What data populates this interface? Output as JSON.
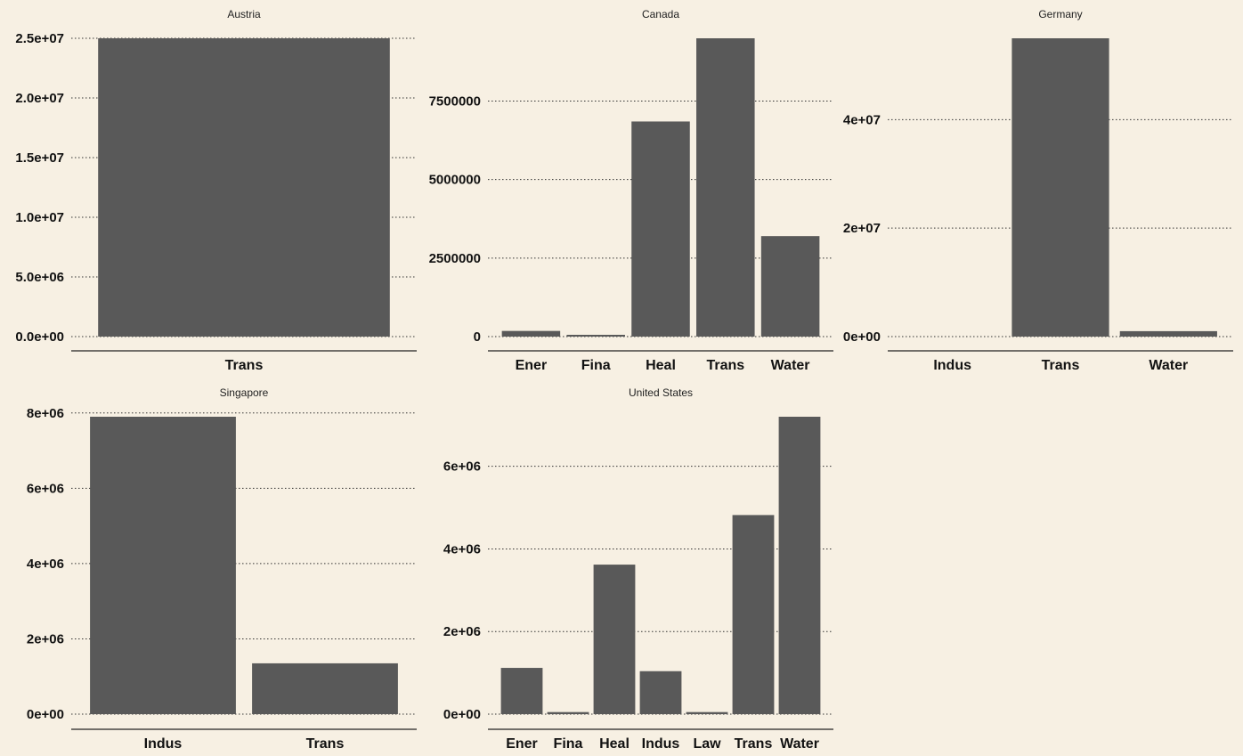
{
  "chart_data": [
    {
      "type": "bar",
      "title": "Austria",
      "categories": [
        "Trans"
      ],
      "values": [
        25000000
      ],
      "ylim": [
        0,
        25000000
      ],
      "y_ticks": [
        {
          "value": 0,
          "label": "0.0e+00"
        },
        {
          "value": 5000000,
          "label": "5.0e+06"
        },
        {
          "value": 10000000,
          "label": "1.0e+07"
        },
        {
          "value": 15000000,
          "label": "1.5e+07"
        },
        {
          "value": 20000000,
          "label": "2.0e+07"
        },
        {
          "value": 25000000,
          "label": "2.5e+07"
        }
      ],
      "grid": "horizontal dotted"
    },
    {
      "type": "bar",
      "title": "Canada",
      "categories": [
        "Ener",
        "Fina",
        "Heal",
        "Trans",
        "Water"
      ],
      "values": [
        180000,
        30000,
        6850000,
        9500000,
        3200000
      ],
      "ylim": [
        0,
        9500000
      ],
      "y_ticks": [
        {
          "value": 0,
          "label": "0"
        },
        {
          "value": 2500000,
          "label": "2500000"
        },
        {
          "value": 5000000,
          "label": "5000000"
        },
        {
          "value": 7500000,
          "label": "7500000"
        }
      ],
      "grid": "horizontal dotted"
    },
    {
      "type": "bar",
      "title": "Germany",
      "categories": [
        "Indus",
        "Trans",
        "Water"
      ],
      "values": [
        0,
        55000000,
        1000000
      ],
      "ylim": [
        0,
        55000000
      ],
      "y_ticks": [
        {
          "value": 0,
          "label": "0e+00"
        },
        {
          "value": 20000000,
          "label": "2e+07"
        },
        {
          "value": 40000000,
          "label": "4e+07"
        }
      ],
      "grid": "horizontal dotted"
    },
    {
      "type": "bar",
      "title": "Singapore",
      "categories": [
        "Indus",
        "Trans"
      ],
      "values": [
        7900000,
        1350000
      ],
      "ylim": [
        0,
        7900000
      ],
      "y_ticks": [
        {
          "value": 0,
          "label": "0e+00"
        },
        {
          "value": 2000000,
          "label": "2e+06"
        },
        {
          "value": 4000000,
          "label": "4e+06"
        },
        {
          "value": 6000000,
          "label": "6e+06"
        },
        {
          "value": 8000000,
          "label": "8e+06"
        }
      ],
      "grid": "horizontal dotted"
    },
    {
      "type": "bar",
      "title": "United States",
      "categories": [
        "Ener",
        "Fina",
        "Heal",
        "Indus",
        "Law",
        "Trans",
        "Water"
      ],
      "values": [
        1120000,
        50000,
        3620000,
        1040000,
        50000,
        4820000,
        7200000
      ],
      "ylim": [
        0,
        7200000
      ],
      "y_ticks": [
        {
          "value": 0,
          "label": "0e+00"
        },
        {
          "value": 2000000,
          "label": "2e+06"
        },
        {
          "value": 4000000,
          "label": "4e+06"
        },
        {
          "value": 6000000,
          "label": "6e+06"
        }
      ],
      "grid": "horizontal dotted"
    }
  ],
  "style": {
    "background": "#f7f0e3",
    "bar_color": "#595959",
    "grid_color": "#333333",
    "axis_color": "#222222"
  }
}
